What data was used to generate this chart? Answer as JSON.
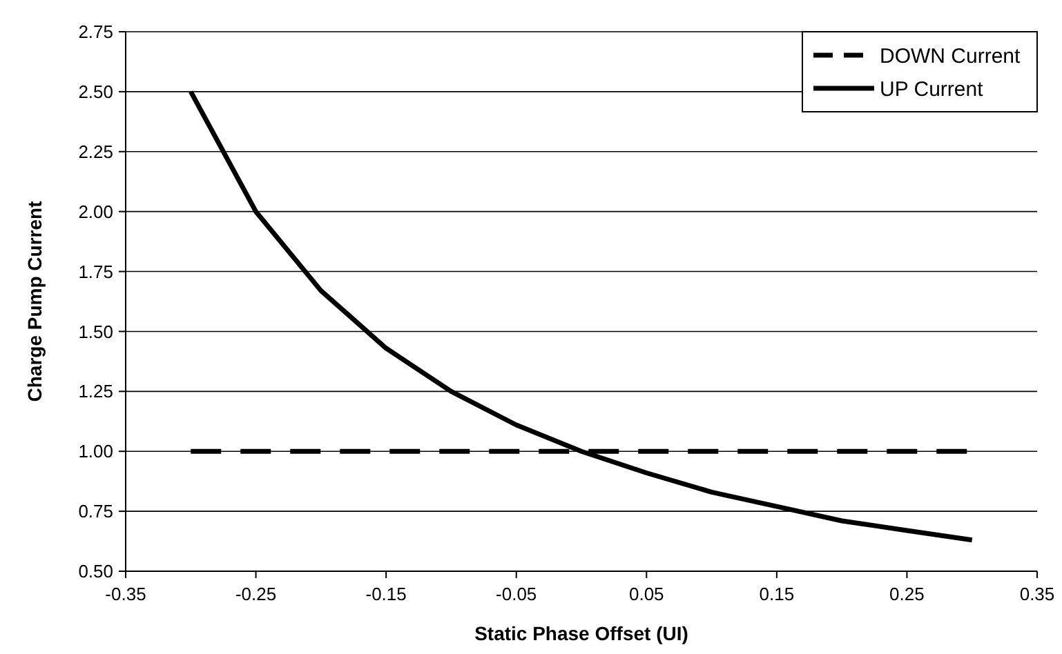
{
  "chart_data": {
    "type": "line",
    "xlabel": "Static Phase Offset (UI)",
    "ylabel": "Charge Pump Current",
    "xlim": [
      -0.35,
      0.35
    ],
    "xticks": [
      {
        "value": -0.35,
        "label": "-0.35"
      },
      {
        "value": -0.25,
        "label": "-0.25"
      },
      {
        "value": -0.15,
        "label": "-0.15"
      },
      {
        "value": -0.05,
        "label": "-0.05"
      },
      {
        "value": 0.05,
        "label": "0.05"
      },
      {
        "value": 0.15,
        "label": "0.15"
      },
      {
        "value": 0.25,
        "label": "0.25"
      },
      {
        "value": 0.35,
        "label": "0.35"
      }
    ],
    "ylim": [
      0.5,
      2.75
    ],
    "yticks": [
      {
        "value": 0.5,
        "label": "0.50"
      },
      {
        "value": 0.75,
        "label": "0.75"
      },
      {
        "value": 1,
        "label": "1.00"
      },
      {
        "value": 1.25,
        "label": "1.25"
      },
      {
        "value": 1.5,
        "label": "1.50"
      },
      {
        "value": 1.75,
        "label": "1.75"
      },
      {
        "value": 2,
        "label": "2.00"
      },
      {
        "value": 2.25,
        "label": "2.25"
      },
      {
        "value": 2.5,
        "label": "2.50"
      },
      {
        "value": 2.75,
        "label": "2.75"
      }
    ],
    "grid": "y",
    "legend": "top right",
    "marker": "none",
    "series": [
      {
        "name": "DOWN Current",
        "color": "#000000",
        "line_style": "dashed",
        "x": [
          -0.3,
          0.3
        ],
        "values": [
          1,
          1
        ]
      },
      {
        "name": "UP Current",
        "color": "#000000",
        "line_style": "solid",
        "x": [
          -0.3,
          -0.25,
          -0.2,
          -0.15,
          -0.1,
          -0.05,
          0,
          0.05,
          0.1,
          0.15,
          0.2,
          0.25,
          0.3
        ],
        "values": [
          2.5,
          2.0,
          1.67,
          1.43,
          1.25,
          1.11,
          1.0,
          0.91,
          0.83,
          0.77,
          0.71,
          0.67,
          0.63
        ]
      }
    ]
  }
}
